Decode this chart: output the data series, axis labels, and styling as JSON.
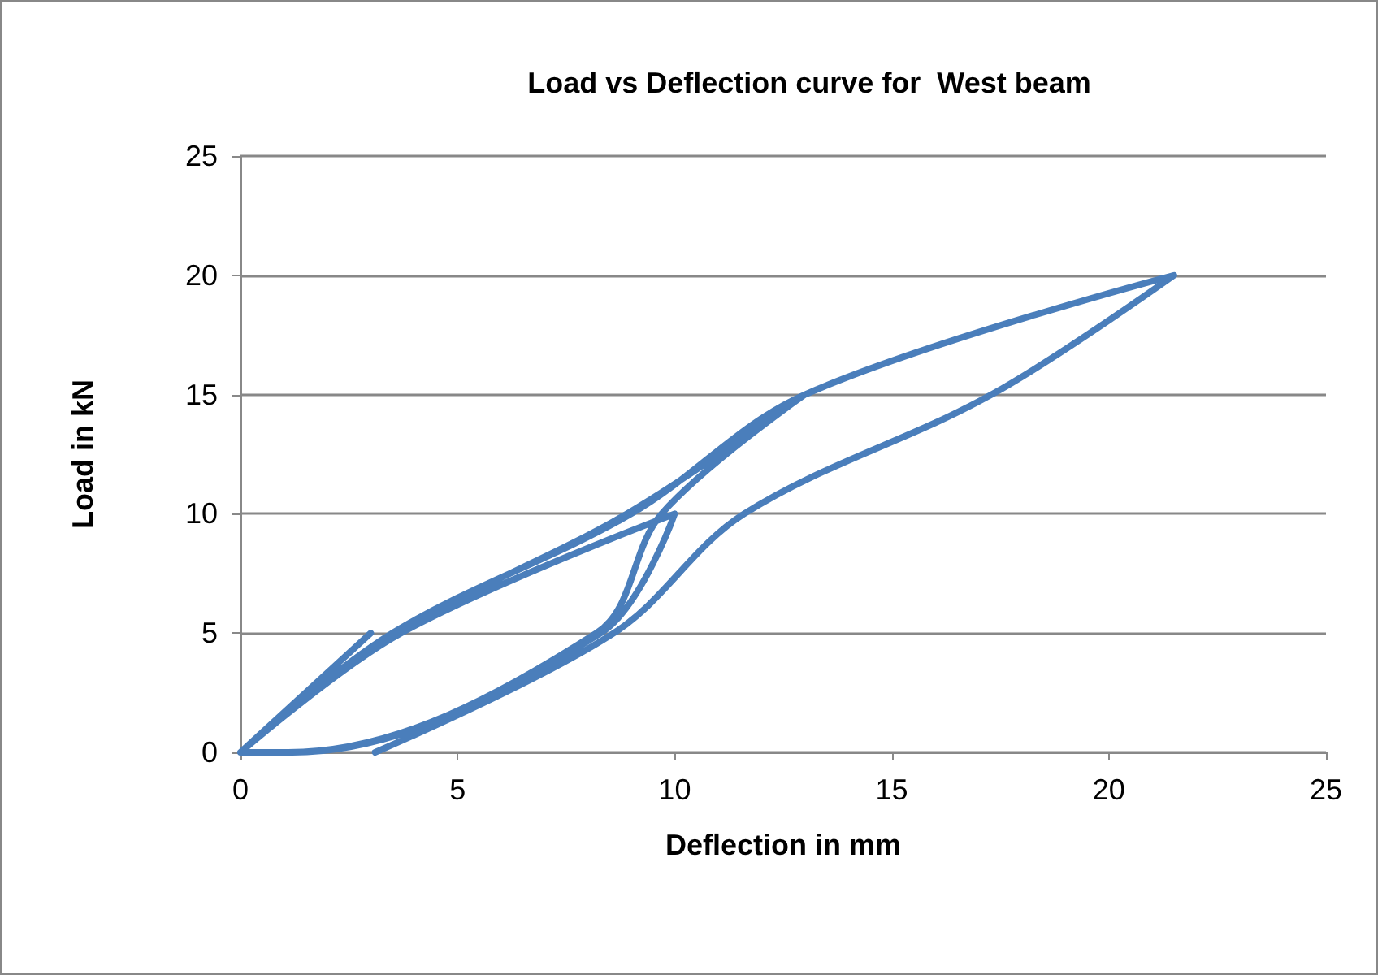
{
  "chart_data": {
    "type": "line",
    "title": "Load vs Deflection curve for  West beam",
    "xlabel": "Deflection in mm",
    "ylabel": "Load in kN",
    "series": [
      {
        "color": "#4a7ebb",
        "x": [
          0,
          3,
          0,
          3.7,
          10,
          8.3,
          1.2,
          0,
          3.6,
          8.9,
          13,
          9.7,
          8.2,
          1.1,
          0,
          3.5,
          9,
          13,
          21.5,
          17.3,
          11.6,
          8.6,
          3.1
        ],
        "values": [
          0,
          5,
          0,
          5,
          10,
          5,
          0,
          0,
          5,
          10,
          15,
          10,
          5,
          0,
          0,
          5,
          10,
          15,
          20,
          15,
          10,
          5,
          0
        ]
      }
    ],
    "xlim": [
      0,
      25
    ],
    "xticks": [
      0,
      5,
      10,
      15,
      20,
      25
    ],
    "ylim": [
      0,
      25
    ],
    "yticks": [
      0,
      5,
      10,
      15,
      20,
      25
    ],
    "grid": "y",
    "marker": "none",
    "line_style": "solid"
  }
}
